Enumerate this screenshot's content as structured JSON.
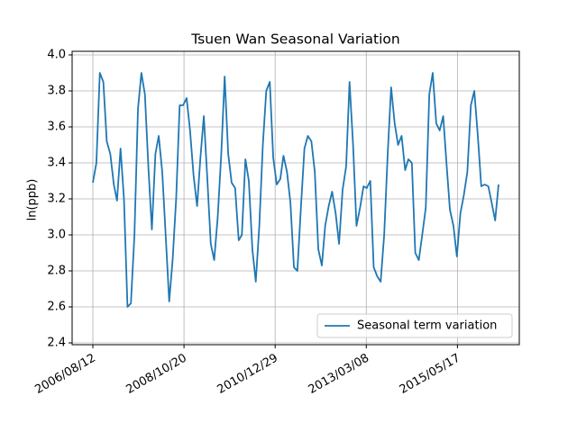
{
  "chart_data": {
    "type": "line",
    "title": "Tsuen Wan Seasonal Variation",
    "y_label": "ln(ppb)",
    "x": [
      "2006/08/12",
      "2006/09/12",
      "2006/10/12",
      "2006/11/12",
      "2006/12/12",
      "2007/01/12",
      "2007/02/12",
      "2007/03/12",
      "2007/04/12",
      "2007/05/12",
      "2007/06/12",
      "2007/07/12",
      "2007/08/12",
      "2007/09/12",
      "2007/10/12",
      "2007/11/12",
      "2007/12/12",
      "2008/01/12",
      "2008/02/12",
      "2008/03/12",
      "2008/04/12",
      "2008/05/12",
      "2008/06/12",
      "2008/07/12",
      "2008/08/12",
      "2008/09/12",
      "2008/10/12",
      "2008/11/12",
      "2008/12/12",
      "2009/01/12",
      "2009/02/12",
      "2009/03/12",
      "2009/04/12",
      "2009/05/12",
      "2009/06/12",
      "2009/07/12",
      "2009/08/12",
      "2009/09/12",
      "2009/10/12",
      "2009/11/12",
      "2009/12/12",
      "2010/01/12",
      "2010/02/12",
      "2010/03/12",
      "2010/04/12",
      "2010/05/12",
      "2010/06/12",
      "2010/07/12",
      "2010/08/12",
      "2010/09/12",
      "2010/10/12",
      "2010/11/12",
      "2010/12/12",
      "2011/01/12",
      "2011/02/12",
      "2011/03/12",
      "2011/04/12",
      "2011/05/12",
      "2011/06/12",
      "2011/07/12",
      "2011/08/12",
      "2011/09/12",
      "2011/10/12",
      "2011/11/12",
      "2011/12/12",
      "2012/01/12",
      "2012/02/12",
      "2012/03/12",
      "2012/04/12",
      "2012/05/12",
      "2012/06/12",
      "2012/07/12",
      "2012/08/12",
      "2012/09/12",
      "2012/10/12",
      "2012/11/12",
      "2012/12/12",
      "2013/01/12",
      "2013/02/12",
      "2013/03/12",
      "2013/04/12",
      "2013/05/12",
      "2013/06/12",
      "2013/07/12",
      "2013/08/12",
      "2013/09/12",
      "2013/10/12",
      "2013/11/12",
      "2013/12/12",
      "2014/01/12",
      "2014/02/12",
      "2014/03/12",
      "2014/04/12",
      "2014/05/12",
      "2014/06/12",
      "2014/07/12",
      "2014/08/12",
      "2014/09/12",
      "2014/10/12",
      "2014/11/12",
      "2014/12/12",
      "2015/01/12",
      "2015/02/12",
      "2015/03/12",
      "2015/04/12",
      "2015/05/12",
      "2015/06/12",
      "2015/07/12",
      "2015/08/12",
      "2015/09/12",
      "2015/10/12",
      "2015/11/12",
      "2015/12/12",
      "2016/01/12",
      "2016/02/12",
      "2016/03/12",
      "2016/04/12",
      "2016/05/12"
    ],
    "series": [
      {
        "name": "Seasonal term variation",
        "color": "#1f77b4",
        "values": [
          3.29,
          3.4,
          3.9,
          3.85,
          3.52,
          3.45,
          3.28,
          3.19,
          3.48,
          3.2,
          2.6,
          2.62,
          3.0,
          3.7,
          3.9,
          3.78,
          3.38,
          3.03,
          3.45,
          3.55,
          3.35,
          3.0,
          2.63,
          2.86,
          3.2,
          3.72,
          3.72,
          3.76,
          3.58,
          3.33,
          3.16,
          3.42,
          3.66,
          3.32,
          2.95,
          2.86,
          3.1,
          3.45,
          3.88,
          3.45,
          3.29,
          3.26,
          2.97,
          3.0,
          3.42,
          3.3,
          2.92,
          2.74,
          3.05,
          3.5,
          3.8,
          3.85,
          3.43,
          3.28,
          3.31,
          3.44,
          3.35,
          3.18,
          2.82,
          2.8,
          3.15,
          3.48,
          3.55,
          3.52,
          3.35,
          2.92,
          2.83,
          3.05,
          3.16,
          3.24,
          3.12,
          2.95,
          3.25,
          3.38,
          3.85,
          3.5,
          3.05,
          3.15,
          3.27,
          3.26,
          3.3,
          2.82,
          2.77,
          2.74,
          3.0,
          3.45,
          3.82,
          3.62,
          3.5,
          3.55,
          3.36,
          3.42,
          3.4,
          2.9,
          2.86,
          3.0,
          3.15,
          3.78,
          3.9,
          3.62,
          3.58,
          3.66,
          3.38,
          3.14,
          3.05,
          2.88,
          3.12,
          3.22,
          3.35,
          3.72,
          3.8,
          3.55,
          3.27,
          3.28,
          3.27,
          3.18,
          3.08,
          3.28
        ]
      }
    ],
    "xlim": [
      "2006/02/11",
      "2016/11/10"
    ],
    "xticks": [
      "2006/08/12",
      "2008/10/20",
      "2010/12/29",
      "2013/03/08",
      "2015/05/17"
    ],
    "ylim": [
      2.39,
      4.02
    ],
    "yticks": [
      {
        "value": 2.4,
        "label": "2.4"
      },
      {
        "value": 2.6,
        "label": "2.6"
      },
      {
        "value": 2.8,
        "label": "2.8"
      },
      {
        "value": 3.0,
        "label": "3.0"
      },
      {
        "value": 3.2,
        "label": "3.2"
      },
      {
        "value": 3.4,
        "label": "3.4"
      },
      {
        "value": 3.6,
        "label": "3.6"
      },
      {
        "value": 3.8,
        "label": "3.8"
      },
      {
        "value": 4.0,
        "label": "4.0"
      }
    ],
    "grid": true,
    "legend": "lower right"
  }
}
